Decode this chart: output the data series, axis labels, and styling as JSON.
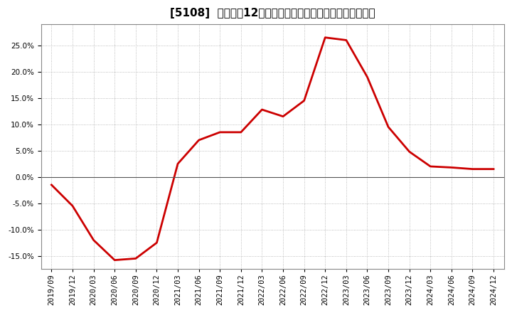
{
  "title": "[5108]  売上高の12か月移動合計の対前年同期増減率の推移",
  "x_labels": [
    "2019/09",
    "2019/12",
    "2020/03",
    "2020/06",
    "2020/09",
    "2020/12",
    "2021/03",
    "2021/06",
    "2021/09",
    "2021/12",
    "2022/03",
    "2022/06",
    "2022/09",
    "2022/12",
    "2023/03",
    "2023/06",
    "2023/09",
    "2023/12",
    "2024/03",
    "2024/06",
    "2024/09",
    "2024/12"
  ],
  "y_values": [
    -1.5,
    -5.5,
    -12.0,
    -15.8,
    -15.5,
    -12.5,
    2.5,
    7.0,
    8.5,
    8.5,
    12.8,
    11.5,
    14.5,
    26.5,
    26.0,
    19.0,
    9.5,
    4.8,
    2.0,
    1.8,
    1.5,
    1.5
  ],
  "line_color": "#cc0000",
  "line_width": 2.0,
  "ylim": [
    -17.5,
    29.0
  ],
  "yticks": [
    -15.0,
    -10.0,
    -5.0,
    0.0,
    5.0,
    10.0,
    15.0,
    20.0,
    25.0
  ],
  "background_color": "#ffffff",
  "plot_bg_color": "#ffffff",
  "grid_color": "#aaaaaa",
  "zero_line_color": "#555555",
  "title_fontsize": 11,
  "tick_fontsize": 7.5
}
